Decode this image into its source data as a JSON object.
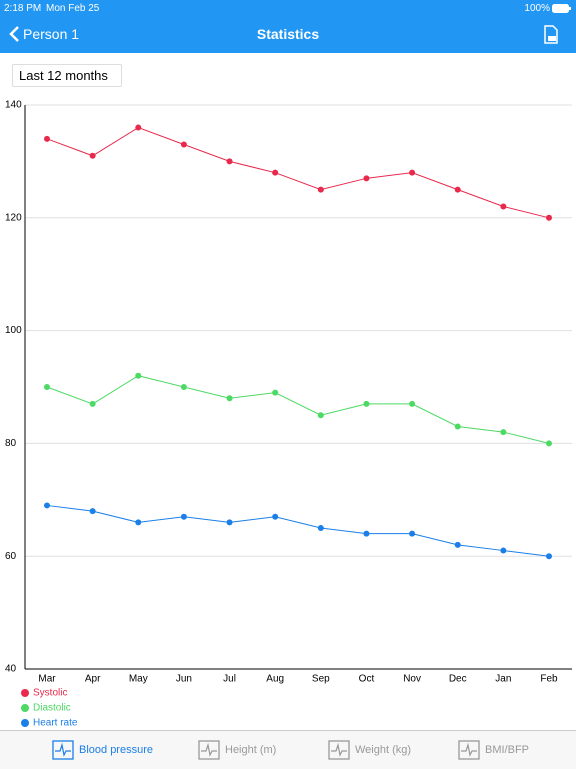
{
  "status_bar": {
    "time": "2:18 PM",
    "date": "Mon Feb 25",
    "battery": "100%"
  },
  "nav": {
    "back": "Person 1",
    "title": "Statistics"
  },
  "filter": "Last 12 months",
  "chart_data": {
    "type": "line",
    "categories": [
      "Mar",
      "Apr",
      "May",
      "Jun",
      "Jul",
      "Aug",
      "Sep",
      "Oct",
      "Nov",
      "Dec",
      "Jan",
      "Feb"
    ],
    "series": [
      {
        "name": "Systolic",
        "color": "#e8294c",
        "values": [
          134,
          131,
          136,
          133,
          130,
          128,
          125,
          127,
          128,
          125,
          122,
          120
        ]
      },
      {
        "name": "Diastolic",
        "color": "#4cd964",
        "values": [
          90,
          87,
          92,
          90,
          88,
          89,
          85,
          87,
          87,
          83,
          82,
          80
        ]
      },
      {
        "name": "Heart rate",
        "color": "#1a7fe8",
        "values": [
          69,
          68,
          66,
          67,
          66,
          67,
          65,
          64,
          64,
          62,
          61,
          60
        ]
      }
    ],
    "ylim": [
      40,
      140
    ],
    "yticks": [
      40,
      60,
      80,
      100,
      120,
      140
    ],
    "grid": true
  },
  "tab_bar": {
    "items": [
      {
        "label": "Blood pressure",
        "selected": true
      },
      {
        "label": "Height (m)",
        "selected": false
      },
      {
        "label": "Weight (kg)",
        "selected": false
      },
      {
        "label": "BMI/BFP",
        "selected": false
      }
    ]
  }
}
